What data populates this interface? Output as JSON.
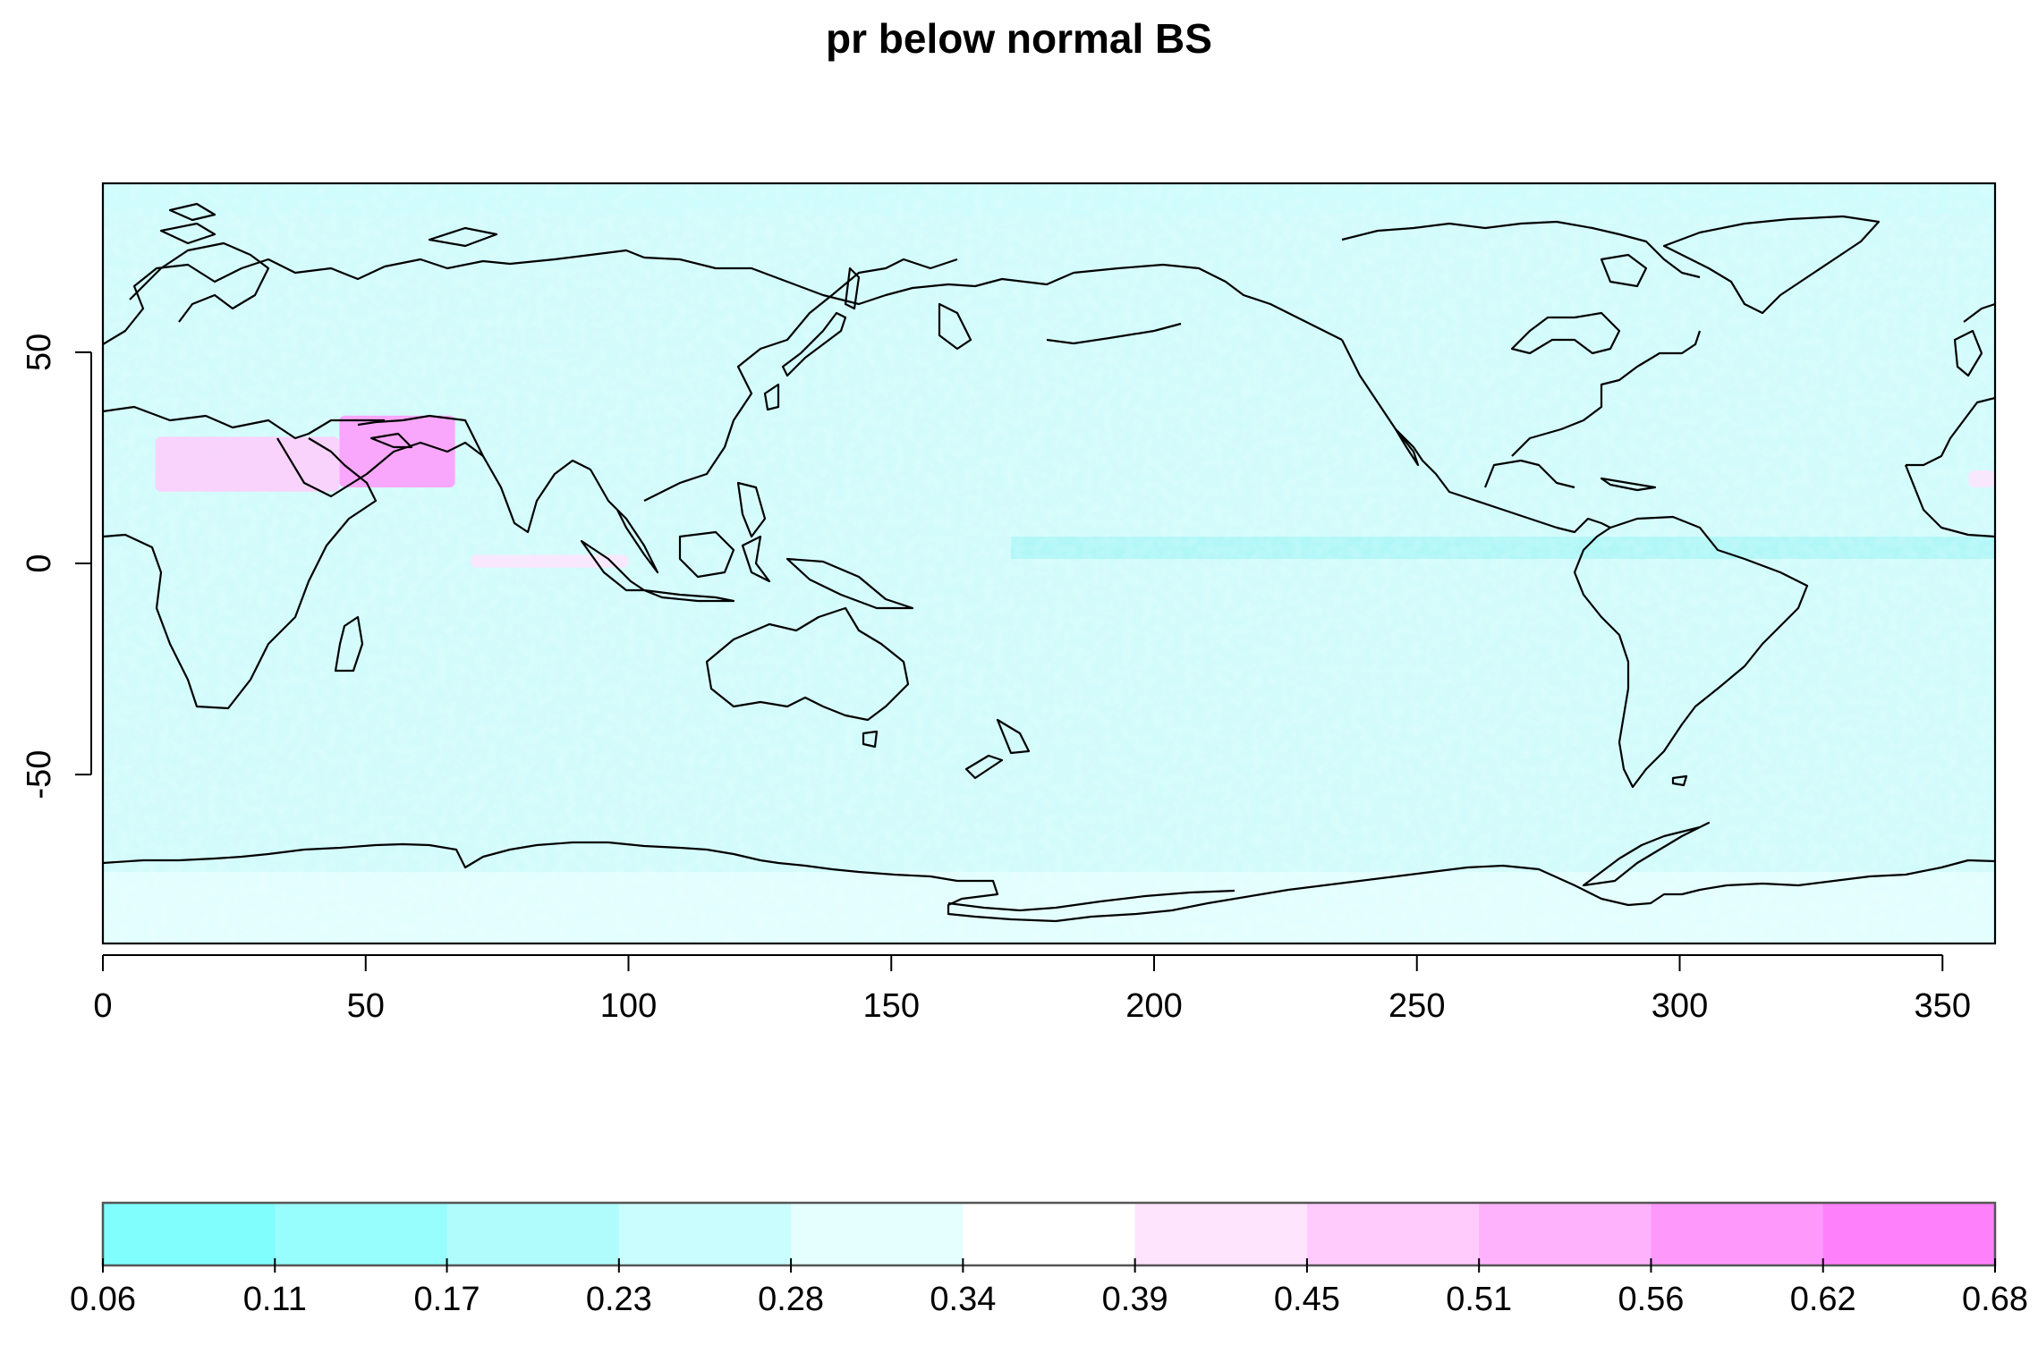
{
  "title": "pr below normal BS",
  "map": {
    "x_ticks": [
      "0",
      "50",
      "100",
      "150",
      "200",
      "250",
      "300",
      "350"
    ],
    "x_tick_values": [
      0,
      50,
      100,
      150,
      200,
      250,
      300,
      350
    ],
    "y_ticks": [
      "50",
      "0",
      "-50"
    ],
    "y_tick_values": [
      50,
      0,
      -50
    ],
    "xlim": [
      0,
      360
    ],
    "ylim": [
      -90,
      90
    ],
    "background_color": "#d2fbfb",
    "coastline_color": "#000000",
    "highlights": [
      {
        "name": "arabian-peninsula-high",
        "lon": [
          45,
          67
        ],
        "lat": [
          18,
          35
        ],
        "value": 0.62
      },
      {
        "name": "north-africa-high",
        "lon": [
          10,
          45
        ],
        "lat": [
          17,
          30
        ],
        "value": 0.48
      },
      {
        "name": "indian-ocean-band",
        "lon": [
          70,
          100
        ],
        "lat": [
          -1,
          2
        ],
        "value": 0.45
      },
      {
        "name": "atlantic-patch",
        "lon": [
          355,
          360
        ],
        "lat": [
          18,
          22
        ],
        "value": 0.45
      }
    ]
  },
  "legend": {
    "breaks": [
      "0.06",
      "0.11",
      "0.17",
      "0.23",
      "0.28",
      "0.34",
      "0.39",
      "0.45",
      "0.51",
      "0.56",
      "0.62",
      "0.68"
    ],
    "colors": [
      "#80fdfd",
      "#98fdfd",
      "#b0fcfc",
      "#cafdfd",
      "#e4fffe",
      "#ffffff",
      "#ffe4fd",
      "#ffcbfc",
      "#ffb2fc",
      "#ff98fb",
      "#ff80fb"
    ]
  }
}
